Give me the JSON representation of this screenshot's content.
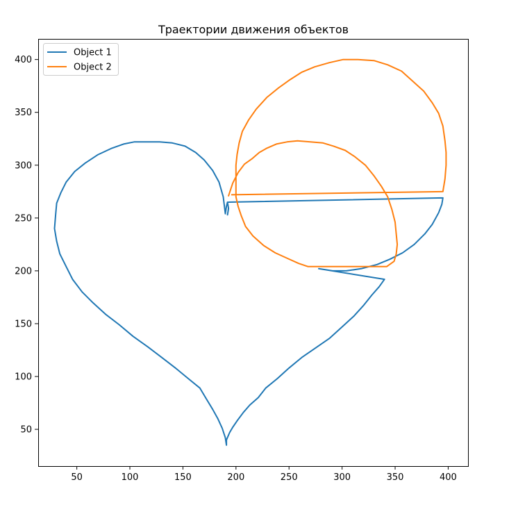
{
  "chart_data": {
    "type": "line",
    "title": "Траектории движения объектов",
    "xlabel": "",
    "ylabel": "",
    "xlim": [
      13.6,
      418.7
    ],
    "ylim": [
      15.2,
      419.5
    ],
    "xticks": [
      50,
      100,
      150,
      200,
      250,
      300,
      350,
      400
    ],
    "yticks": [
      50,
      100,
      150,
      200,
      250,
      300,
      350,
      400
    ],
    "grid": false,
    "legend_position": "top-left",
    "series": [
      {
        "name": "Object 1",
        "color": "#1f77b4",
        "points": [
          [
            192,
            253
          ],
          [
            193,
            259
          ],
          [
            192,
            265
          ],
          [
            191,
            261
          ],
          [
            190,
            254
          ],
          [
            188,
            270
          ],
          [
            184,
            284
          ],
          [
            178,
            295
          ],
          [
            170,
            305
          ],
          [
            162,
            312
          ],
          [
            152,
            318
          ],
          [
            140,
            321
          ],
          [
            128,
            322
          ],
          [
            116,
            322
          ],
          [
            104,
            322
          ],
          [
            94,
            320
          ],
          [
            83,
            316
          ],
          [
            70,
            310
          ],
          [
            58,
            302
          ],
          [
            48,
            294
          ],
          [
            40,
            284
          ],
          [
            35,
            274
          ],
          [
            31,
            264
          ],
          [
            30,
            253
          ],
          [
            29,
            240
          ],
          [
            31,
            228
          ],
          [
            34,
            216
          ],
          [
            40,
            204
          ],
          [
            46,
            192
          ],
          [
            55,
            180
          ],
          [
            65,
            170
          ],
          [
            77,
            159
          ],
          [
            90,
            149
          ],
          [
            103,
            138
          ],
          [
            117,
            128
          ],
          [
            130,
            118
          ],
          [
            143,
            108
          ],
          [
            155,
            98
          ],
          [
            166,
            89
          ],
          [
            172,
            79
          ],
          [
            178,
            69
          ],
          [
            183,
            60
          ],
          [
            187,
            51
          ],
          [
            190,
            42
          ],
          [
            191,
            35
          ],
          [
            191,
            40
          ],
          [
            194,
            47
          ],
          [
            197,
            52
          ],
          [
            201,
            58
          ],
          [
            207,
            66
          ],
          [
            213,
            73
          ],
          [
            221,
            80
          ],
          [
            228,
            89
          ],
          [
            239,
            98
          ],
          [
            250,
            108
          ],
          [
            262,
            118
          ],
          [
            275,
            127
          ],
          [
            288,
            136
          ],
          [
            299,
            146
          ],
          [
            311,
            157
          ],
          [
            320,
            167
          ],
          [
            328,
            177
          ],
          [
            335,
            185
          ],
          [
            340,
            192
          ],
          [
            278,
            202
          ],
          [
            291,
            200
          ],
          [
            304,
            200
          ],
          [
            318,
            202
          ],
          [
            333,
            206
          ],
          [
            345,
            211
          ],
          [
            357,
            217
          ],
          [
            368,
            225
          ],
          [
            378,
            235
          ],
          [
            385,
            244
          ],
          [
            391,
            255
          ],
          [
            394,
            263
          ],
          [
            395,
            269
          ],
          [
            193,
            265
          ]
        ]
      },
      {
        "name": "Object 2",
        "color": "#ff7f0e",
        "points": [
          [
            193,
            271
          ],
          [
            197,
            283
          ],
          [
            202,
            293
          ],
          [
            208,
            301
          ],
          [
            215,
            306
          ],
          [
            222,
            312
          ],
          [
            229,
            316
          ],
          [
            238,
            320
          ],
          [
            248,
            322
          ],
          [
            258,
            323
          ],
          [
            270,
            322
          ],
          [
            282,
            321
          ],
          [
            292,
            318
          ],
          [
            303,
            314
          ],
          [
            312,
            308
          ],
          [
            322,
            300
          ],
          [
            330,
            290
          ],
          [
            337,
            280
          ],
          [
            343,
            270
          ],
          [
            347,
            258
          ],
          [
            350,
            246
          ],
          [
            351,
            235
          ],
          [
            352,
            225
          ],
          [
            351,
            216
          ],
          [
            349,
            209
          ],
          [
            342,
            204
          ],
          [
            322,
            204
          ],
          [
            302,
            204
          ],
          [
            282,
            204
          ],
          [
            268,
            204
          ],
          [
            259,
            207
          ],
          [
            248,
            212
          ],
          [
            237,
            217
          ],
          [
            226,
            224
          ],
          [
            216,
            233
          ],
          [
            209,
            242
          ],
          [
            205,
            252
          ],
          [
            202,
            261
          ],
          [
            200,
            270
          ],
          [
            200,
            279
          ],
          [
            200,
            290
          ],
          [
            200,
            300
          ],
          [
            201,
            310
          ],
          [
            203,
            321
          ],
          [
            206,
            332
          ],
          [
            212,
            343
          ],
          [
            219,
            353
          ],
          [
            229,
            364
          ],
          [
            240,
            373
          ],
          [
            251,
            381
          ],
          [
            262,
            388
          ],
          [
            274,
            393
          ],
          [
            288,
            397
          ],
          [
            301,
            400
          ],
          [
            315,
            400
          ],
          [
            330,
            399
          ],
          [
            343,
            395
          ],
          [
            356,
            389
          ],
          [
            366,
            380
          ],
          [
            377,
            370
          ],
          [
            385,
            359
          ],
          [
            391,
            349
          ],
          [
            395,
            337
          ],
          [
            397,
            323
          ],
          [
            398,
            312
          ],
          [
            398,
            300
          ],
          [
            397,
            287
          ],
          [
            395,
            275
          ],
          [
            196,
            272
          ]
        ]
      }
    ]
  }
}
